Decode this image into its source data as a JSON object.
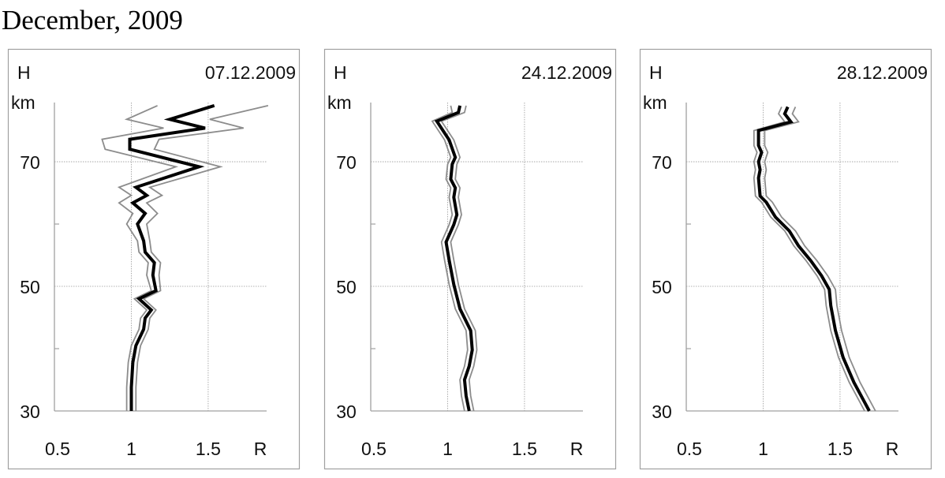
{
  "title": "December, 2009",
  "chart_data": [
    {
      "type": "line",
      "title": "07.12.2009",
      "ylabel": "H",
      "yunit": "km",
      "xlabel": "R",
      "xlim": [
        0.5,
        1.88
      ],
      "ylim": [
        30,
        79.5
      ],
      "xticks": [
        "0.5",
        "1",
        "1.5"
      ],
      "yticks": [
        "30",
        "50",
        "70"
      ],
      "minor_yticks": [
        40,
        60
      ],
      "grid": {
        "x": [
          1,
          1.5
        ],
        "y": [
          50,
          70
        ],
        "style": "dotted"
      },
      "H": [
        79,
        76.8,
        75.4,
        73.6,
        72,
        69.2,
        65.9,
        64.6,
        63.4,
        61.7,
        60,
        57.3,
        55.5,
        53.8,
        51.8,
        49.3,
        48,
        46.2,
        44.9,
        43.1,
        40.5,
        37.8,
        33.8,
        30
      ],
      "series": [
        {
          "role": "lower",
          "color": "#8c8c8c",
          "values": [
            1.17,
            0.97,
            1.21,
            0.81,
            0.83,
            1.29,
            0.92,
            1.0,
            0.92,
            1.01,
            0.97,
            1.04,
            1.05,
            1.11,
            1.1,
            1.13,
            1.02,
            1.1,
            1.06,
            1.05,
            1.0,
            0.98,
            0.97,
            0.97
          ]
        },
        {
          "role": "upper",
          "color": "#8c8c8c",
          "values": [
            1.89,
            1.51,
            1.73,
            1.18,
            1.15,
            1.58,
            1.12,
            1.2,
            1.1,
            1.17,
            1.1,
            1.12,
            1.13,
            1.19,
            1.18,
            1.19,
            1.08,
            1.16,
            1.12,
            1.11,
            1.06,
            1.04,
            1.03,
            1.03
          ]
        },
        {
          "role": "mean",
          "color": "#000000",
          "values": [
            1.54,
            1.25,
            1.48,
            0.99,
            0.99,
            1.44,
            1.03,
            1.1,
            1.01,
            1.09,
            1.04,
            1.08,
            1.09,
            1.15,
            1.14,
            1.16,
            1.05,
            1.13,
            1.09,
            1.08,
            1.03,
            1.01,
            1.0,
            1.0
          ]
        }
      ]
    },
    {
      "type": "line",
      "title": "24.12.2009",
      "ylabel": "H",
      "yunit": "km",
      "xlabel": "R",
      "xlim": [
        0.5,
        1.88
      ],
      "ylim": [
        30,
        79.5
      ],
      "xticks": [
        "0.5",
        "1",
        "1.5"
      ],
      "yticks": [
        "30",
        "50",
        "70"
      ],
      "minor_yticks": [
        40,
        60
      ],
      "grid": {
        "x": [
          1,
          1.5
        ],
        "y": [
          50,
          70
        ],
        "style": "dotted"
      },
      "H": [
        79,
        77.9,
        76.5,
        73.5,
        70.7,
        69.6,
        67.2,
        65.8,
        64.3,
        61.5,
        59.9,
        57.1,
        54.2,
        50.3,
        46.4,
        42.9,
        39.8,
        37.2,
        35,
        32.4,
        30
      ],
      "series": [
        {
          "role": "lower",
          "color": "#8c8c8c",
          "values": [
            1.02,
            1.03,
            0.9,
            0.98,
            1.02,
            1.0,
            0.99,
            1.02,
            1.01,
            1.03,
            1.01,
            0.96,
            0.98,
            1.01,
            1.05,
            1.12,
            1.13,
            1.11,
            1.08,
            1.09,
            1.11
          ]
        },
        {
          "role": "upper",
          "color": "#8c8c8c",
          "values": [
            1.12,
            1.11,
            0.96,
            1.04,
            1.08,
            1.06,
            1.05,
            1.08,
            1.07,
            1.09,
            1.07,
            1.02,
            1.04,
            1.07,
            1.11,
            1.18,
            1.19,
            1.17,
            1.14,
            1.15,
            1.17
          ]
        },
        {
          "role": "mean",
          "color": "#000000",
          "values": [
            1.08,
            1.07,
            0.93,
            1.01,
            1.05,
            1.03,
            1.02,
            1.05,
            1.04,
            1.06,
            1.04,
            0.99,
            1.01,
            1.04,
            1.08,
            1.15,
            1.16,
            1.14,
            1.11,
            1.12,
            1.14
          ]
        }
      ]
    },
    {
      "type": "line",
      "title": "28.12.2009",
      "ylabel": "H",
      "yunit": "km",
      "xlabel": "R",
      "xlim": [
        0.5,
        1.88
      ],
      "ylim": [
        30,
        79.5
      ],
      "xticks": [
        "0.5",
        "1",
        "1.5"
      ],
      "yticks": [
        "30",
        "50",
        "70"
      ],
      "minor_yticks": [
        40,
        60
      ],
      "grid": {
        "x": [
          1,
          1.5
        ],
        "y": [
          50,
          70
        ],
        "style": "dotted"
      },
      "H": [
        78.8,
        77.7,
        76.4,
        75,
        72.6,
        71.5,
        70,
        68.7,
        67.4,
        64.5,
        63.5,
        61.1,
        58.9,
        56.5,
        54.1,
        51.7,
        49.5,
        46.9,
        42.9,
        38.6,
        34.6,
        30
      ],
      "series": [
        {
          "role": "lower",
          "color": "#8c8c8c",
          "values": [
            1.12,
            1.1,
            1.14,
            0.94,
            0.94,
            0.96,
            0.94,
            0.95,
            0.94,
            0.95,
            0.99,
            1.05,
            1.14,
            1.2,
            1.28,
            1.35,
            1.4,
            1.41,
            1.44,
            1.49,
            1.56,
            1.66
          ]
        },
        {
          "role": "upper",
          "color": "#8c8c8c",
          "values": [
            1.21,
            1.19,
            1.23,
            1.01,
            1.01,
            1.03,
            1.01,
            1.02,
            1.01,
            1.02,
            1.06,
            1.12,
            1.21,
            1.27,
            1.35,
            1.42,
            1.47,
            1.48,
            1.51,
            1.56,
            1.63,
            1.73
          ]
        },
        {
          "role": "mean",
          "color": "#000000",
          "values": [
            1.16,
            1.14,
            1.18,
            0.97,
            0.97,
            0.99,
            0.97,
            0.98,
            0.97,
            0.98,
            1.02,
            1.08,
            1.17,
            1.23,
            1.31,
            1.38,
            1.43,
            1.44,
            1.47,
            1.52,
            1.59,
            1.69
          ]
        }
      ]
    }
  ]
}
